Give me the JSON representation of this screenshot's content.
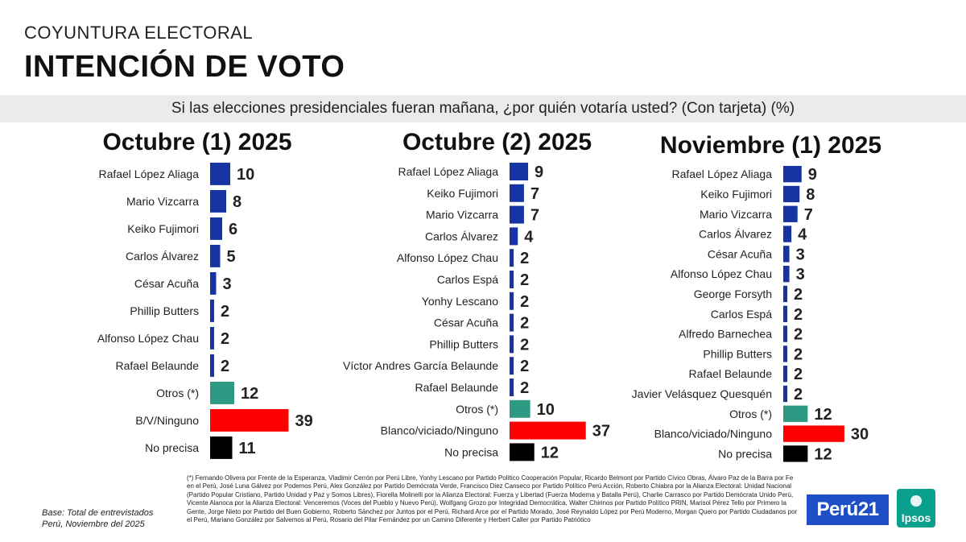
{
  "header": {
    "kicker": "COYUNTURA ELECTORAL",
    "title": "INTENCIÓN DE VOTO",
    "question": "Si las elecciones presidenciales fueran mañana, ¿por quién votaría usted? (Con tarjeta) (%)"
  },
  "colors": {
    "candidate": "#1734a3",
    "otros": "#2e9a83",
    "blanco": "#ff0000",
    "no_precisa": "#000000"
  },
  "chart_data": [
    {
      "type": "bar",
      "title": "Octubre (1) 2025",
      "categories": [
        "Rafael López Aliaga",
        "Mario Vizcarra",
        "Keiko Fujimori",
        "Carlos Álvarez",
        "César Acuña",
        "Phillip Butters",
        "Alfonso López Chau",
        "Rafael Belaunde",
        "Otros (*)",
        "B/V/Ninguno",
        "No precisa"
      ],
      "values": [
        10,
        8,
        6,
        5,
        3,
        2,
        2,
        2,
        12,
        39,
        11
      ],
      "kinds": [
        "candidate",
        "candidate",
        "candidate",
        "candidate",
        "candidate",
        "candidate",
        "candidate",
        "candidate",
        "otros",
        "blanco",
        "no_precisa"
      ]
    },
    {
      "type": "bar",
      "title": "Octubre (2) 2025",
      "categories": [
        "Rafael López Aliaga",
        "Keiko Fujimori",
        "Mario Vizcarra",
        "Carlos Álvarez",
        "Alfonso López Chau",
        "Carlos Espá",
        "Yonhy Lescano",
        "César Acuña",
        "Phillip Butters",
        "Víctor Andres García Belaunde",
        "Rafael Belaunde",
        "Otros (*)",
        "Blanco/viciado/Ninguno",
        "No precisa"
      ],
      "values": [
        9,
        7,
        7,
        4,
        2,
        2,
        2,
        2,
        2,
        2,
        2,
        10,
        37,
        12
      ],
      "kinds": [
        "candidate",
        "candidate",
        "candidate",
        "candidate",
        "candidate",
        "candidate",
        "candidate",
        "candidate",
        "candidate",
        "candidate",
        "candidate",
        "otros",
        "blanco",
        "no_precisa"
      ]
    },
    {
      "type": "bar",
      "title": "Noviembre (1) 2025",
      "categories": [
        "Rafael López Aliaga",
        "Keiko Fujimori",
        "Mario Vizcarra",
        "Carlos Álvarez",
        "César Acuña",
        "Alfonso López Chau",
        "George Forsyth",
        "Carlos Espá",
        "Alfredo Barnechea",
        "Phillip Butters",
        "Rafael Belaunde",
        "Javier Velásquez Quesquén",
        "Otros (*)",
        "Blanco/viciado/Ninguno",
        "No precisa"
      ],
      "values": [
        9,
        8,
        7,
        4,
        3,
        3,
        2,
        2,
        2,
        2,
        2,
        2,
        12,
        30,
        12
      ],
      "kinds": [
        "candidate",
        "candidate",
        "candidate",
        "candidate",
        "candidate",
        "candidate",
        "candidate",
        "candidate",
        "candidate",
        "candidate",
        "candidate",
        "candidate",
        "otros",
        "blanco",
        "no_precisa"
      ]
    }
  ],
  "footnote": "(*) Fernando Olivera por Frente de la Esperanza, Vladimir Cerrón por Perú Libre, Yonhy Lescano por Partido Político Cooperación Popular, Ricardo Belmont por Partido Cívico Obras, Álvaro Paz de la Barra por Fe en el Perú, José Luna Gálvez por Podemos Perú, Alex González por Partido Demócrata Verde, Francisco Diez Canseco por Partido Político Perú Acción, Roberto Chiabra por la Alianza Electoral: Unidad Nacional (Partido Popular Cristiano, Partido Unidad y Paz y Somos Libres), Fiorella Molinelli por la Alianza Electoral: Fuerza y Libertad (Fuerza Moderna y Batalla Perú), Charlie Carrasco por Partido Demócrata Unido Perú, Vicente Alanoca por la Alianza Electoral: Venceremos (Voces del Pueblo y Nuevo Perú), Wolfgang Grozo por Integridad Democrática, Walter Chirinos por Partido Político PRIN, Marisol Pérez Tello por Primero la Gente, Jorge Nieto por Partido del Buen Gobierno, Roberto Sánchez por Juntos por el Perú, Richard Arce por el Partido Morado, José Reynaldo López por Perú Moderno, Morgan Quero por Partido Ciudadanos por el Perú, Mariano González por Salvemos al Perú, Rosario del Pilar Fernández por un Camino Diferente y Herbert Caller por Partido Patriótico",
  "base_note": {
    "line1": "Base: Total de entrevistados",
    "line2": "Perú, Noviembre del 2025"
  },
  "logos": {
    "peru21": "Perú21",
    "ipsos": "Ipsos"
  }
}
